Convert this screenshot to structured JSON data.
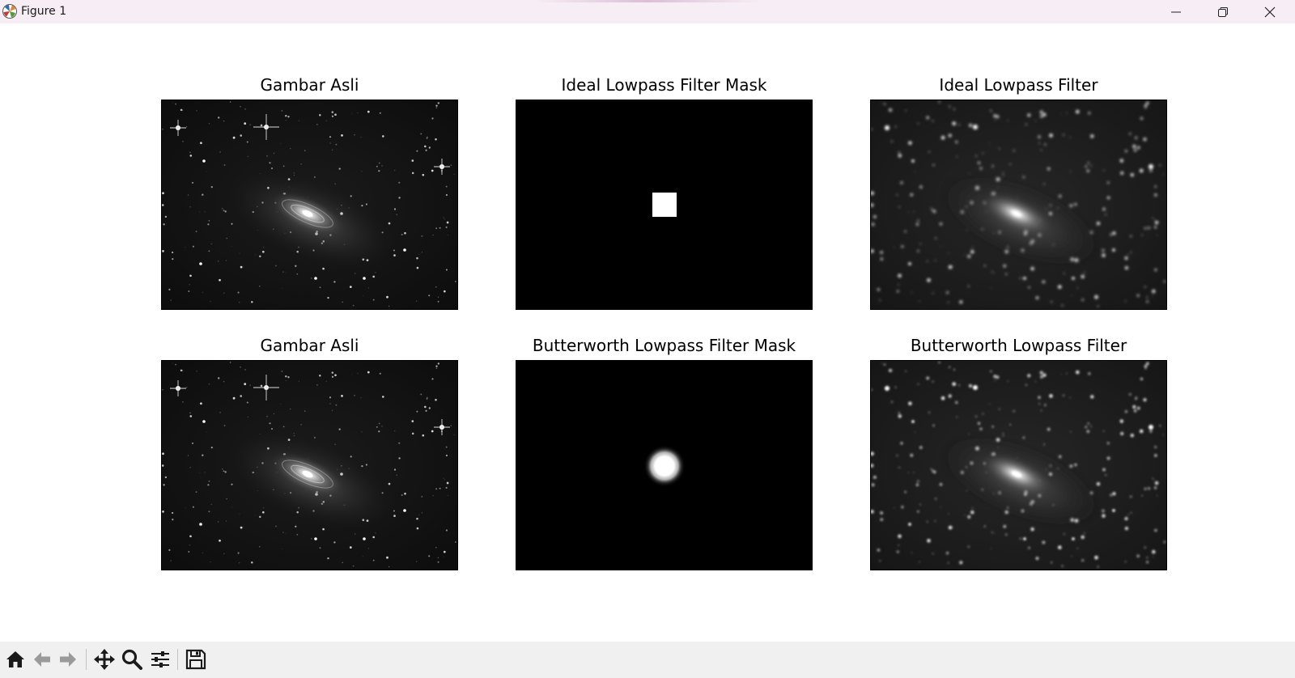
{
  "window": {
    "title": "Figure 1"
  },
  "figure": {
    "panels": [
      {
        "title": "Gambar Asli",
        "kind": "original"
      },
      {
        "title": "Ideal Lowpass Filter Mask",
        "kind": "ideal-mask"
      },
      {
        "title": "Ideal Lowpass Filter",
        "kind": "ideal-filtered"
      },
      {
        "title": "Gambar Asli",
        "kind": "original"
      },
      {
        "title": "Butterworth Lowpass Filter Mask",
        "kind": "butterworth-mask"
      },
      {
        "title": "Butterworth Lowpass Filter",
        "kind": "butterworth-filtered"
      }
    ]
  },
  "toolbar": {
    "buttons": [
      {
        "icon": "home-icon"
      },
      {
        "icon": "back-arrow-icon"
      },
      {
        "icon": "forward-arrow-icon"
      },
      {
        "icon": "pan-move-icon"
      },
      {
        "icon": "zoom-magnifier-icon"
      },
      {
        "icon": "configure-subplots-icon"
      },
      {
        "icon": "save-floppy-icon"
      }
    ]
  }
}
